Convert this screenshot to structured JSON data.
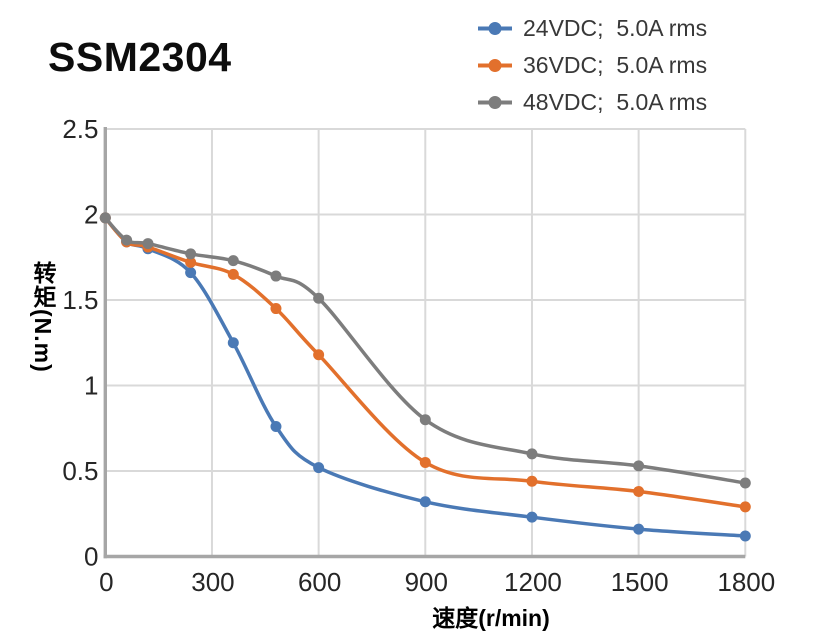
{
  "title": "SSM2304",
  "chart_data": {
    "type": "line",
    "title": "SSM2304",
    "xlabel": "速度(r/min)",
    "ylabel": "转矩(N.m)",
    "x": [
      0,
      60,
      120,
      240,
      360,
      480,
      600,
      900,
      1200,
      1500,
      1800
    ],
    "series": [
      {
        "name": "24VDC;  5.0A rms",
        "color": "#4a79b5",
        "values": [
          1.98,
          1.84,
          1.8,
          1.66,
          1.25,
          0.76,
          0.52,
          0.32,
          0.23,
          0.16,
          0.12
        ]
      },
      {
        "name": "36VDC;  5.0A rms",
        "color": "#e2702c",
        "values": [
          1.98,
          1.84,
          1.81,
          1.72,
          1.65,
          1.45,
          1.18,
          0.55,
          0.44,
          0.38,
          0.29
        ]
      },
      {
        "name": "48VDC;  5.0A rms",
        "color": "#7d7d7d",
        "values": [
          1.98,
          1.85,
          1.83,
          1.77,
          1.73,
          1.64,
          1.51,
          0.8,
          0.6,
          0.53,
          0.43
        ]
      }
    ],
    "xticks": [
      0,
      300,
      600,
      900,
      1200,
      1500,
      1800
    ],
    "yticks": [
      0,
      0.5,
      1,
      1.5,
      2,
      2.5
    ],
    "xlim": [
      0,
      1800
    ],
    "ylim": [
      0,
      2.5
    ],
    "grid": true,
    "legend_position": "top-right",
    "grid_color": "#d9d9d9",
    "axis_color": "#a6a6a6",
    "smoothed": true,
    "marker": "circle"
  }
}
